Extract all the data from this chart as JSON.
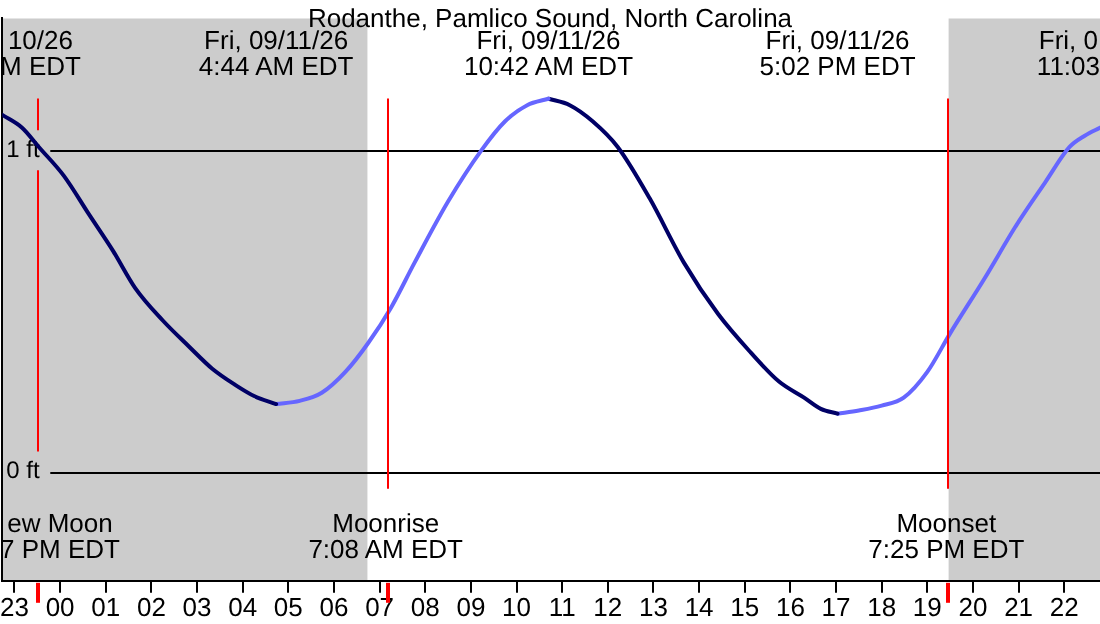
{
  "chart_data": {
    "type": "line",
    "title": "Rodanthe, Pamlico Sound, North Carolina",
    "series": [
      {
        "color": "#000066",
        "x": [
          "--09-10T22:44",
          "--09-10T23:10",
          "--09-10T23:32",
          "--09-11T00:05",
          "--09-11T00:38",
          "--09-11T01:10",
          "--09-11T01:39",
          "--09-11T02:15",
          "--09-11T02:49",
          "--09-11T03:20",
          "--09-11T03:50",
          "--09-11T04:15",
          "--09-11T04:44"
        ],
        "values": [
          1.11,
          1.07,
          1.01,
          0.92,
          0.8,
          0.685,
          0.57,
          0.47,
          0.39,
          0.32,
          0.27,
          0.235,
          0.21
        ]
      },
      {
        "color": "#6666ff",
        "x": [
          "--09-11T04:44",
          "--09-11T05:15",
          "--09-11T05:44",
          "--09-11T06:15",
          "--09-11T06:45",
          "--09-11T07:15",
          "--09-11T07:46",
          "--09-11T08:30",
          "--09-11T09:14",
          "--09-11T09:45",
          "--09-11T10:14",
          "--09-11T10:42"
        ],
        "values": [
          0.21,
          0.22,
          0.245,
          0.31,
          0.4,
          0.51,
          0.65,
          0.84,
          1.0,
          1.09,
          1.14,
          1.16
        ]
      },
      {
        "color": "#000066",
        "x": [
          "--09-11T10:42",
          "--09-11T11:10",
          "--09-11T11:40",
          "--09-11T12:13",
          "--09-11T12:55",
          "--09-11T13:40",
          "--09-11T14:25",
          "--09-11T15:08",
          "--09-11T15:45",
          "--09-11T16:18",
          "--09-11T16:40",
          "--09-11T17:02"
        ],
        "values": [
          1.16,
          1.14,
          1.09,
          1.01,
          0.85,
          0.65,
          0.49,
          0.37,
          0.28,
          0.23,
          0.195,
          0.18
        ]
      },
      {
        "color": "#6666ff",
        "x": [
          "--09-11T17:02",
          "--09-11T17:30",
          "--09-11T18:00",
          "--09-11T18:29",
          "--09-11T19:00",
          "--09-11T19:30",
          "--09-11T20:15",
          "--09-11T20:58",
          "--09-11T21:35",
          "--09-11T22:07",
          "--09-11T22:27",
          "--09-11T22:47"
        ],
        "values": [
          0.18,
          0.19,
          0.205,
          0.23,
          0.31,
          0.43,
          0.6,
          0.77,
          0.9,
          1.01,
          1.045,
          1.07
        ]
      }
    ],
    "xlim": [
      "--09-10T22:44",
      "--09-11T22:47"
    ],
    "xticks": [
      {
        "value": "--09-10T23:00",
        "label": "23"
      },
      {
        "value": "--09-11T00:00",
        "label": "00"
      },
      {
        "value": "--09-11T01:00",
        "label": "01"
      },
      {
        "value": "--09-11T02:00",
        "label": "02"
      },
      {
        "value": "--09-11T03:00",
        "label": "03"
      },
      {
        "value": "--09-11T04:00",
        "label": "04"
      },
      {
        "value": "--09-11T05:00",
        "label": "05"
      },
      {
        "value": "--09-11T06:00",
        "label": "06"
      },
      {
        "value": "--09-11T07:00",
        "label": "07"
      },
      {
        "value": "--09-11T08:00",
        "label": "08"
      },
      {
        "value": "--09-11T09:00",
        "label": "09"
      },
      {
        "value": "--09-11T10:00",
        "label": "10"
      },
      {
        "value": "--09-11T11:00",
        "label": "11"
      },
      {
        "value": "--09-11T12:00",
        "label": "12"
      },
      {
        "value": "--09-11T13:00",
        "label": "13"
      },
      {
        "value": "--09-11T14:00",
        "label": "14"
      },
      {
        "value": "--09-11T15:00",
        "label": "15"
      },
      {
        "value": "--09-11T16:00",
        "label": "16"
      },
      {
        "value": "--09-11T17:00",
        "label": "17"
      },
      {
        "value": "--09-11T18:00",
        "label": "18"
      },
      {
        "value": "--09-11T19:00",
        "label": "19"
      },
      {
        "value": "--09-11T20:00",
        "label": "20"
      },
      {
        "value": "--09-11T21:00",
        "label": "21"
      },
      {
        "value": "--09-11T22:00",
        "label": "22"
      }
    ],
    "ylim": [
      -0.34,
      1.41
    ],
    "yticks": [
      {
        "value": 0,
        "label": "0 ft"
      },
      {
        "value": 1,
        "label": "1 ft"
      }
    ],
    "grid": "y",
    "marker": "none",
    "line_style": "solid",
    "legend": false,
    "bands": [
      {
        "axis": "x",
        "from": "--09-10T22:44",
        "to": "--09-11T06:44",
        "color": "#cccccc"
      },
      {
        "axis": "x",
        "from": "--09-11T19:28",
        "to": "--09-11T22:47",
        "color": "#cccccc"
      }
    ],
    "ref_lines": [
      {
        "axis": "x",
        "value": "--09-10T23:28",
        "label": "ew Moon\n7 PM EDT",
        "color": "#ff0000"
      },
      {
        "axis": "x",
        "value": "--09-11T07:08",
        "label": "Moonrise\n7:08 AM EDT",
        "color": "#ff0000"
      },
      {
        "axis": "x",
        "value": "--09-11T19:25",
        "label": "Moonset\n7:25 PM EDT",
        "color": "#ff0000"
      }
    ],
    "annotations": [
      "10/26\nM EDT",
      "Fri, 09/11/26\n4:44 AM EDT",
      "Fri, 09/11/26\n10:42 AM EDT",
      "Fri, 09/11/26\n5:02 PM EDT",
      "Fri, 0\n11:03"
    ]
  }
}
